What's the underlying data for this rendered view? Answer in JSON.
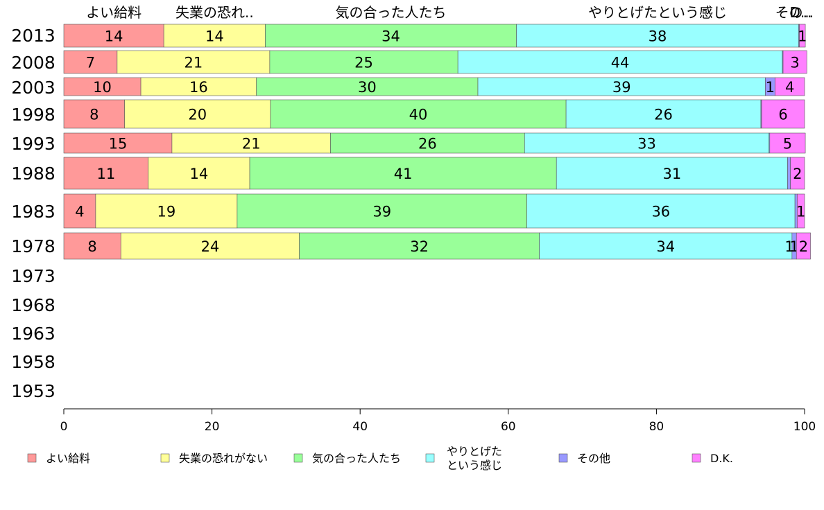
{
  "chart_data": {
    "type": "bar",
    "orientation": "horizontal",
    "stacked": true,
    "xlim": [
      0,
      100
    ],
    "xticks": [
      0,
      20,
      40,
      60,
      80,
      100
    ],
    "categories": [
      "2013",
      "2008",
      "2003",
      "1998",
      "1993",
      "1988",
      "1983",
      "1978",
      "1973",
      "1968",
      "1963",
      "1958",
      "1953"
    ],
    "top_labels": [
      "よい給料",
      "失業の恐れ..",
      "気の合った人たち",
      "やりとげたという感じ",
      "その..",
      "D..."
    ],
    "series": [
      {
        "name": "よい給料",
        "legend_lines": [
          "よい給料"
        ],
        "color": "#ff9999",
        "values": [
          14,
          7,
          10,
          8,
          15,
          11,
          4,
          8,
          null,
          null,
          null,
          null,
          null
        ],
        "shown": [
          13.5,
          7.2,
          10.4,
          8.2,
          14.6,
          11.4,
          4.3,
          7.7,
          null,
          null,
          null,
          null,
          null
        ]
      },
      {
        "name": "失業の恐れがない",
        "legend_lines": [
          "失業の恐れがない"
        ],
        "color": "#ffff99",
        "values": [
          14,
          21,
          16,
          20,
          21,
          14,
          19,
          24,
          null,
          null,
          null,
          null,
          null
        ],
        "shown": [
          13.7,
          20.6,
          15.6,
          19.7,
          21.4,
          13.7,
          19.1,
          24.1,
          null,
          null,
          null,
          null,
          null
        ]
      },
      {
        "name": "気の合った人たち",
        "legend_lines": [
          "気の合った人たち"
        ],
        "color": "#99ff99",
        "values": [
          34,
          25,
          30,
          40,
          26,
          41,
          39,
          32,
          null,
          null,
          null,
          null,
          null
        ],
        "shown": [
          33.9,
          25.4,
          29.9,
          39.9,
          26.2,
          41.4,
          39.1,
          32.4,
          null,
          null,
          null,
          null,
          null
        ]
      },
      {
        "name": "やりとげたという感じ",
        "legend_lines": [
          "やりとげた",
          "という感じ"
        ],
        "color": "#99ffff",
        "values": [
          38,
          44,
          39,
          26,
          33,
          31,
          36,
          34,
          null,
          null,
          null,
          null,
          null
        ],
        "shown": [
          38.1,
          43.8,
          38.8,
          26.3,
          33.0,
          31.2,
          36.2,
          34.1,
          null,
          null,
          null,
          null,
          null
        ]
      },
      {
        "name": "その他",
        "legend_lines": [
          "その他"
        ],
        "color": "#9999ff",
        "values": [
          null,
          null,
          1,
          null,
          null,
          null,
          null,
          1,
          null,
          null,
          null,
          null,
          null
        ],
        "shown": [
          0.1,
          0.1,
          1.3,
          0.1,
          0.1,
          0.4,
          0.3,
          0.6,
          null,
          null,
          null,
          null,
          null
        ]
      },
      {
        "name": "D.K.",
        "legend_lines": [
          "D.K."
        ],
        "color": "#ff80ff",
        "values": [
          1,
          3,
          4,
          6,
          5,
          2,
          1,
          2,
          null,
          null,
          null,
          null,
          null
        ],
        "shown": [
          0.8,
          3.2,
          4.0,
          5.8,
          4.8,
          1.9,
          1.0,
          1.9,
          null,
          null,
          null,
          null,
          null
        ]
      }
    ],
    "extra_labels": [
      {
        "category": "1978",
        "series": "その他",
        "text": "1"
      }
    ],
    "grid": false,
    "legend_position": "bottom"
  }
}
